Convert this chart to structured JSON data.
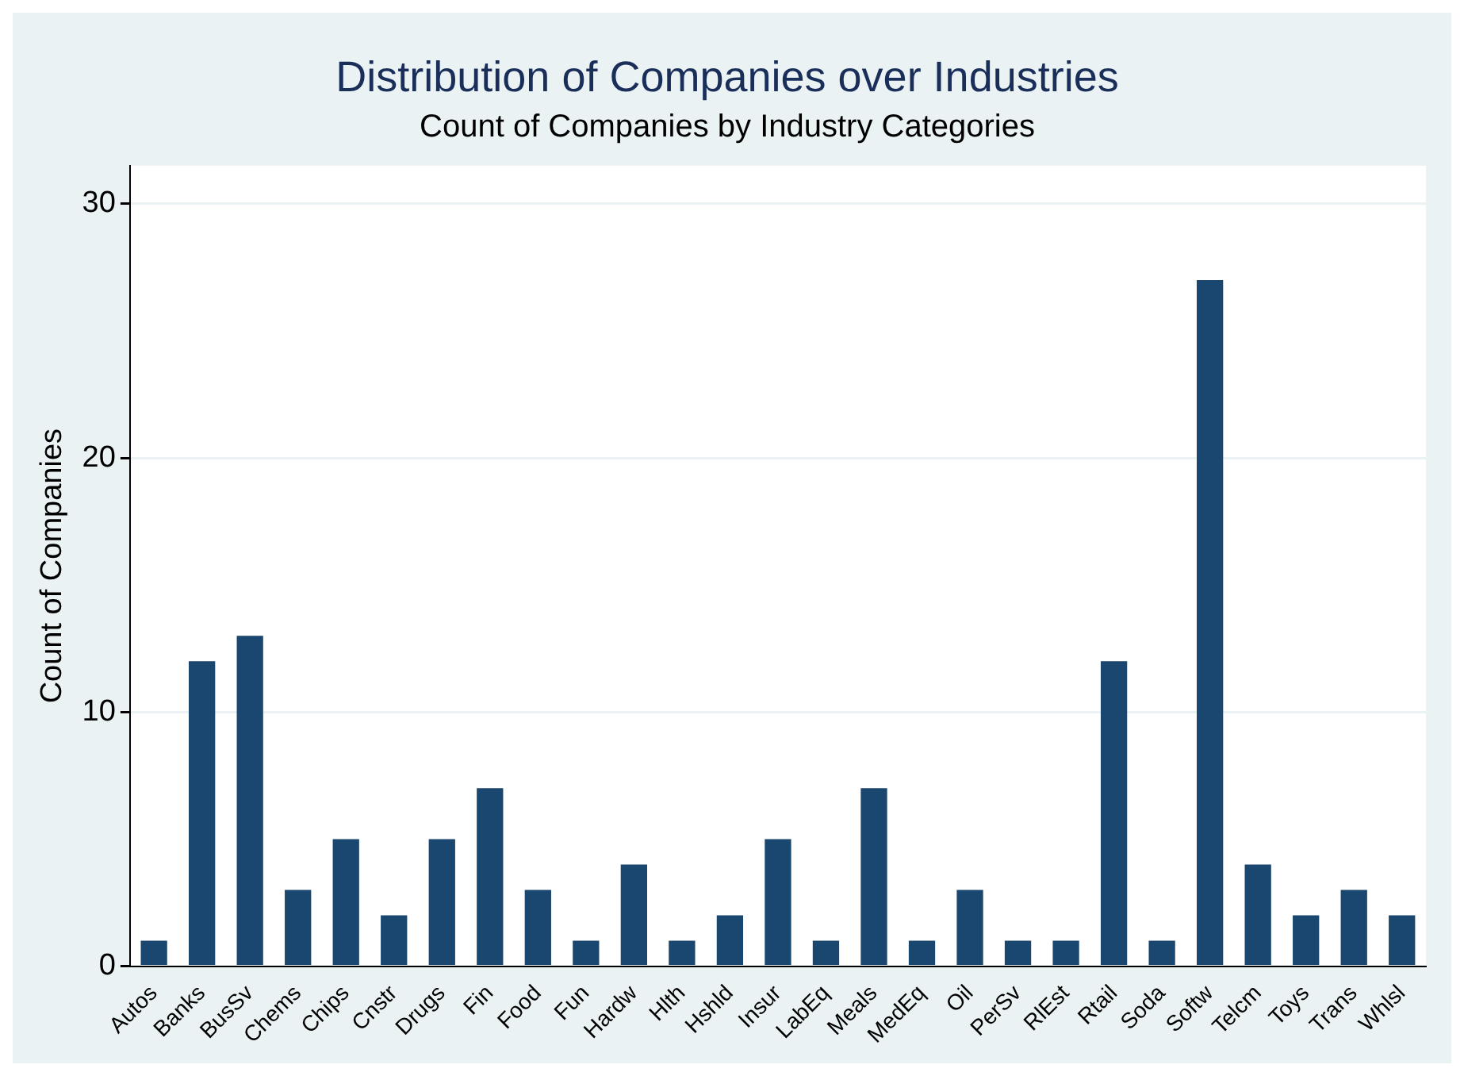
{
  "chart_data": {
    "type": "bar",
    "title": "Distribution of Companies over Industries",
    "subtitle": "Count of Companies by Industry Categories",
    "ylabel": "Count of Companies",
    "categories": [
      "Autos",
      "Banks",
      "BusSv",
      "Chems",
      "Chips",
      "Cnstr",
      "Drugs",
      "Fin",
      "Food",
      "Fun",
      "Hardw",
      "Hlth",
      "Hshld",
      "Insur",
      "LabEq",
      "Meals",
      "MedEq",
      "Oil",
      "PerSv",
      "RlEst",
      "Rtail",
      "Soda",
      "Softw",
      "Telcm",
      "Toys",
      "Trans",
      "Whlsl"
    ],
    "values": [
      1,
      12,
      13,
      3,
      5,
      2,
      5,
      7,
      3,
      1,
      4,
      1,
      2,
      5,
      1,
      7,
      1,
      3,
      1,
      1,
      12,
      1,
      27,
      4,
      2,
      3,
      2
    ],
    "color": "#1a476f",
    "ylim": [
      0,
      31.5
    ],
    "yticks": [
      0,
      10,
      20,
      30
    ],
    "grid": "y",
    "legend": false
  }
}
